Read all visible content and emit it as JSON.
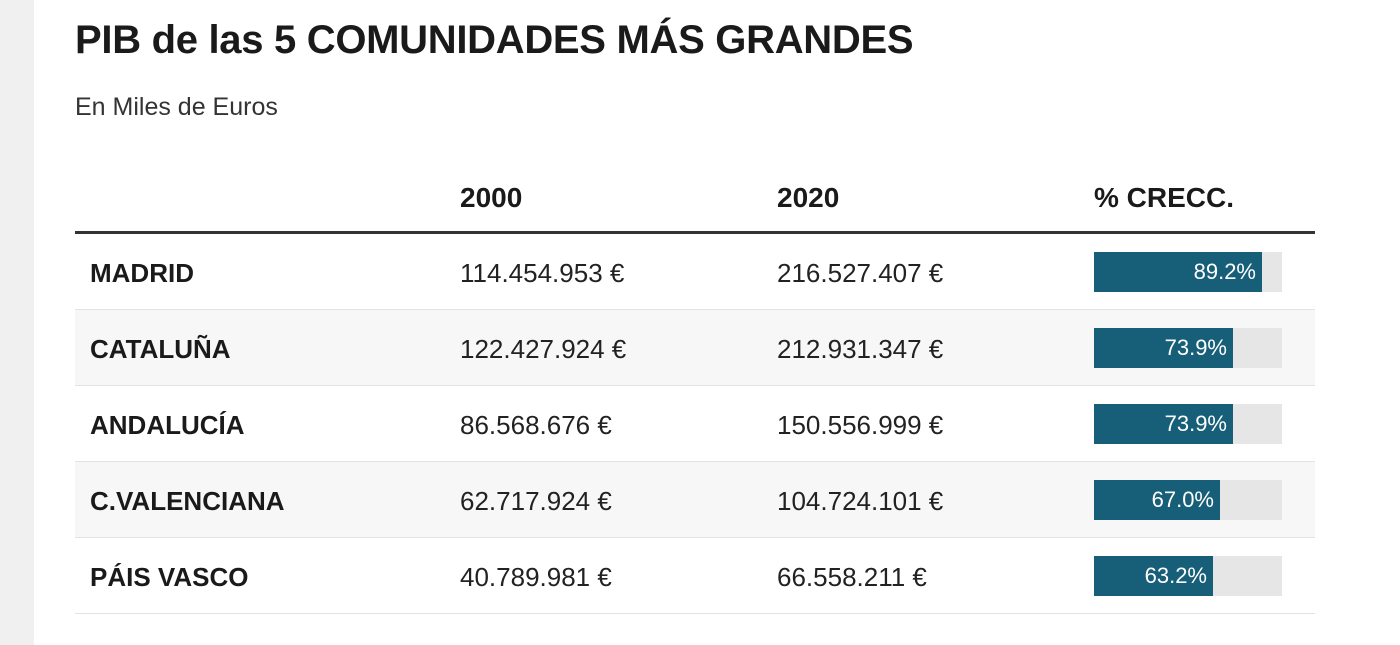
{
  "title": "PIB de las 5 COMUNIDADES MÁS GRANDES",
  "subtitle": "En Miles de Euros",
  "colors": {
    "bar": "#175e78",
    "track": "#e6e6e6"
  },
  "chart_data": {
    "type": "table",
    "columns": [
      "",
      "2000",
      "2020",
      "% CRECC."
    ],
    "rows": [
      {
        "name": "MADRID",
        "v2000": "114.454.953 €",
        "v2020": "216.527.407 €",
        "pct": 89.2,
        "pct_label": "89.2%"
      },
      {
        "name": "CATALUÑA",
        "v2000": "122.427.924 €",
        "v2020": "212.931.347 €",
        "pct": 73.9,
        "pct_label": "73.9%"
      },
      {
        "name": "ANDALUCÍA",
        "v2000": "86.568.676 €",
        "v2020": "150.556.999 €",
        "pct": 73.9,
        "pct_label": "73.9%"
      },
      {
        "name": "C.VALENCIANA",
        "v2000": "62.717.924 €",
        "v2020": "104.724.101 €",
        "pct": 67.0,
        "pct_label": "67.0%"
      },
      {
        "name": "PÁIS VASCO",
        "v2000": "40.789.981 €",
        "v2020": "66.558.211 €",
        "pct": 63.2,
        "pct_label": "63.2%"
      }
    ],
    "pct_max": 100
  }
}
